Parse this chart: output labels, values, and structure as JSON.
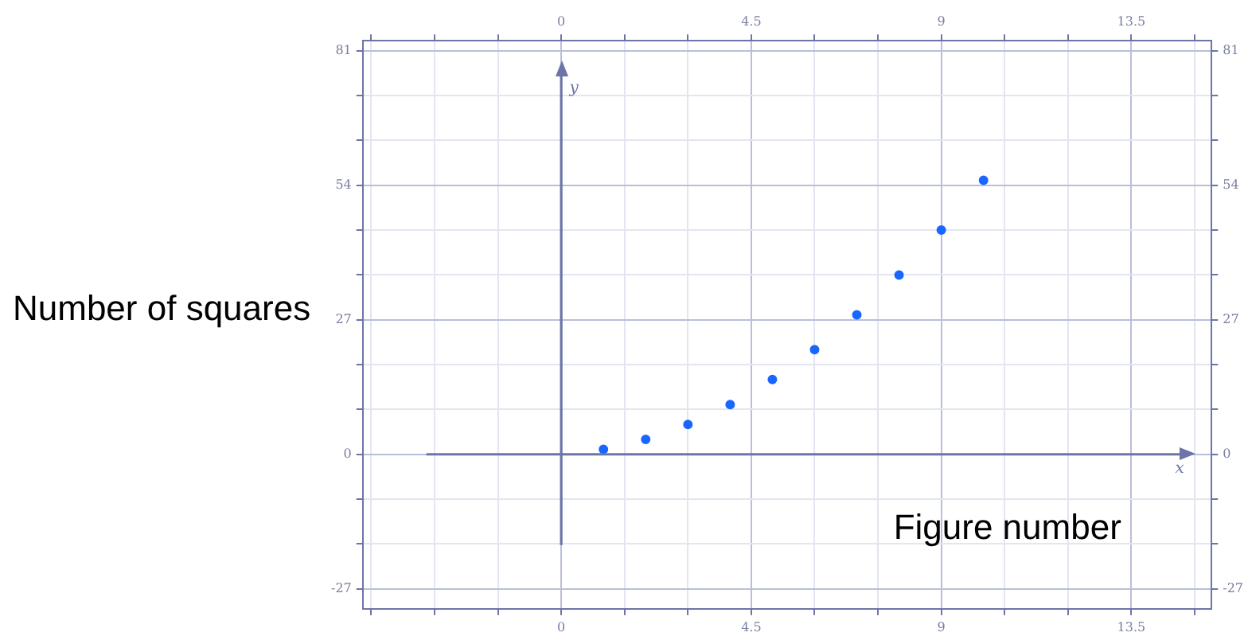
{
  "chart_data": {
    "type": "scatter",
    "xlabel": "Figure number",
    "ylabel": "Number of squares",
    "x": [
      1,
      2,
      3,
      4,
      5,
      6,
      7,
      8,
      9,
      10
    ],
    "series": [
      {
        "color": "#1a66ff",
        "values": [
          1,
          3,
          6,
          10,
          15,
          21,
          28,
          36,
          45,
          55
        ]
      }
    ],
    "marker": "circle",
    "xlim": [
      -4.7,
      15.4
    ],
    "ylim": [
      -31,
      83
    ],
    "xticks": [
      {
        "value": -4.5,
        "label": null
      },
      {
        "value": -3,
        "label": null
      },
      {
        "value": -1.5,
        "label": null
      },
      0,
      {
        "value": 1.5,
        "label": null
      },
      {
        "value": 3,
        "label": null
      },
      4.5,
      {
        "value": 6,
        "label": null
      },
      {
        "value": 7.5,
        "label": null
      },
      9,
      {
        "value": 10.5,
        "label": null
      },
      {
        "value": 12,
        "label": null
      },
      13.5,
      {
        "value": 15,
        "label": null
      }
    ],
    "x2lim": [
      -4.7,
      15.4
    ],
    "x2ticks": [
      {
        "value": -4.5,
        "label": null
      },
      {
        "value": -3,
        "label": null
      },
      {
        "value": -1.5,
        "label": null
      },
      0,
      {
        "value": 1.5,
        "label": null
      },
      {
        "value": 3,
        "label": null
      },
      4.5,
      {
        "value": 6,
        "label": null
      },
      {
        "value": 7.5,
        "label": null
      },
      9,
      {
        "value": 10.5,
        "label": null
      },
      {
        "value": 12,
        "label": null
      },
      13.5,
      {
        "value": 15,
        "label": null
      }
    ],
    "yticks": [
      -27,
      {
        "value": -18,
        "label": null
      },
      {
        "value": -9,
        "label": null
      },
      0,
      {
        "value": 9,
        "label": null
      },
      {
        "value": 18,
        "label": null
      },
      27,
      {
        "value": 36,
        "label": null
      },
      {
        "value": 45,
        "label": null
      },
      54,
      {
        "value": 63,
        "label": null
      },
      {
        "value": 72,
        "label": null
      },
      81
    ],
    "y2lim": [
      -31,
      83
    ],
    "y2ticks": [
      -27,
      {
        "value": -18,
        "label": null
      },
      {
        "value": -9,
        "label": null
      },
      0,
      {
        "value": 9,
        "label": null
      },
      {
        "value": 18,
        "label": null
      },
      27,
      {
        "value": 36,
        "label": null
      },
      {
        "value": 45,
        "label": null
      },
      54,
      {
        "value": 63,
        "label": null
      },
      {
        "value": 72,
        "label": null
      },
      81
    ],
    "annotations": [
      "x",
      "y"
    ],
    "grid": true,
    "legend": false
  }
}
